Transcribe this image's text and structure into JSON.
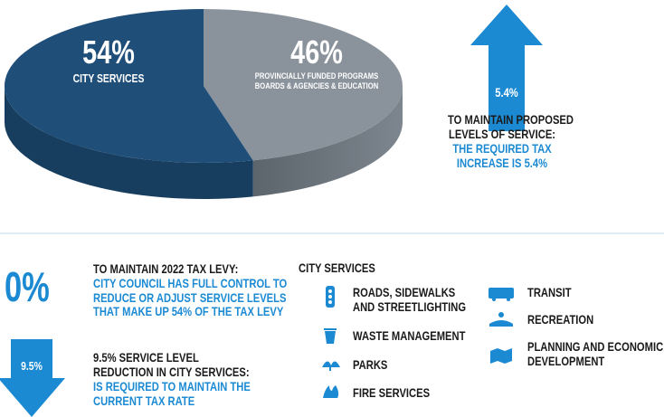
{
  "chart_data": {
    "type": "pie",
    "categories": [
      "CITY SERVICES",
      "PROVINCIALLY FUNDED PROGRAMS BOARDS & AGENCIES & EDUCATION"
    ],
    "values": [
      54,
      46
    ],
    "value_labels": [
      "54%",
      "46%"
    ],
    "colors": [
      "#1f4e79",
      "#8a939c"
    ]
  },
  "increase": {
    "arrow_label": "5.4%",
    "heading": [
      "TO MAINTAIN PROPOSED",
      "LEVELS OF SERVICE:"
    ],
    "detail": [
      "THE REQUIRED TAX",
      "INCREASE IS 5.4%"
    ]
  },
  "levy": {
    "big_label": "0%",
    "heading": "TO MAINTAIN 2022 TAX LEVY:",
    "detail": [
      "CITY COUNCIL HAS FULL CONTROL TO",
      "REDUCE OR ADJUST SERVICE LEVELS",
      "THAT MAKE UP 54% OF THE TAX LEVY"
    ]
  },
  "reduction": {
    "arrow_label": "9.5%",
    "heading": [
      "9.5% SERVICE LEVEL",
      "REDUCTION IN CITY SERVICES:"
    ],
    "detail": [
      "IS REQUIRED TO MAINTAIN THE",
      "CURRENT TAX RATE"
    ]
  },
  "services": {
    "title": "CITY SERVICES",
    "items": [
      [
        "ROADS, SIDEWALKS",
        "AND STREETLIGHTING"
      ],
      [
        "WASTE MANAGEMENT"
      ],
      [
        "PARKS"
      ],
      [
        "FIRE SERVICES"
      ],
      [
        "TRANSIT"
      ],
      [
        "RECREATION"
      ],
      [
        "PLANNING AND ECONOMIC",
        "DEVELOPMENT"
      ]
    ]
  }
}
